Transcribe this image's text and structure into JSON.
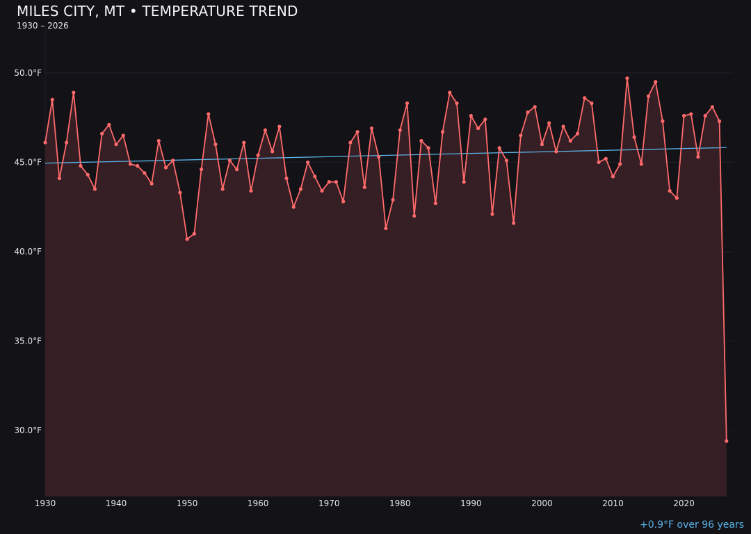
{
  "chart_data": {
    "type": "line",
    "title": "MILES CITY, MT • TEMPERATURE TREND",
    "subtitle": "1930 – 2026",
    "annotation": "+0.9°F over 96 years",
    "xlabel": "",
    "ylabel": "",
    "xlim": [
      1930,
      2027
    ],
    "ylim": [
      26.3,
      52.6
    ],
    "grid": true,
    "x_ticks": [
      "1930",
      "1940",
      "1950",
      "1960",
      "1970",
      "1980",
      "1990",
      "2000",
      "2010",
      "2020"
    ],
    "y_ticks": [
      "30.0°F",
      "35.0°F",
      "40.0°F",
      "45.0°F",
      "50.0°F"
    ],
    "y_tick_values": [
      30,
      35,
      40,
      45,
      50
    ],
    "x": [
      1930,
      1931,
      1932,
      1933,
      1934,
      1935,
      1936,
      1937,
      1938,
      1939,
      1940,
      1941,
      1942,
      1943,
      1944,
      1945,
      1946,
      1947,
      1948,
      1949,
      1950,
      1951,
      1952,
      1953,
      1954,
      1955,
      1956,
      1957,
      1958,
      1959,
      1960,
      1961,
      1962,
      1963,
      1964,
      1965,
      1966,
      1967,
      1968,
      1969,
      1970,
      1971,
      1972,
      1973,
      1974,
      1975,
      1976,
      1977,
      1978,
      1979,
      1980,
      1981,
      1982,
      1983,
      1984,
      1985,
      1986,
      1987,
      1988,
      1989,
      1990,
      1991,
      1992,
      1993,
      1994,
      1995,
      1996,
      1997,
      1998,
      1999,
      2000,
      2001,
      2002,
      2003,
      2004,
      2005,
      2006,
      2007,
      2008,
      2009,
      2010,
      2011,
      2012,
      2013,
      2014,
      2015,
      2016,
      2017,
      2018,
      2019,
      2020,
      2021,
      2022,
      2023,
      2024,
      2025,
      2026
    ],
    "series": [
      {
        "values": [
          46.1,
          48.5,
          44.1,
          46.1,
          48.9,
          44.8,
          44.3,
          43.5,
          46.6,
          47.1,
          46.0,
          46.5,
          44.9,
          44.8,
          44.4,
          43.8,
          46.2,
          44.7,
          45.1,
          43.3,
          40.7,
          41.0,
          44.6,
          47.7,
          46.0,
          43.5,
          45.1,
          44.6,
          46.1,
          43.4,
          45.4,
          46.8,
          45.6,
          47.0,
          44.1,
          42.5,
          43.5,
          45.0,
          44.2,
          43.4,
          43.9,
          43.9,
          42.8,
          46.1,
          46.7,
          43.6,
          46.9,
          45.3,
          41.3,
          42.9,
          46.8,
          48.3,
          42.0,
          46.2,
          45.8,
          42.7,
          46.7,
          48.9,
          48.3,
          43.9,
          47.6,
          46.9,
          47.4,
          42.1,
          45.8,
          45.1,
          41.6,
          46.5,
          47.8,
          48.1,
          46.0,
          47.2,
          45.6,
          47.0,
          46.2,
          46.6,
          48.6,
          48.3,
          45.0,
          45.2,
          44.2,
          44.9,
          49.7,
          46.4,
          44.9,
          48.7,
          49.5,
          47.3,
          43.4,
          43.0,
          47.6,
          47.7,
          45.3,
          47.6,
          48.1,
          47.3,
          29.4
        ],
        "color": "#ff6b6b"
      }
    ],
    "trend": {
      "start": [
        1930,
        44.95
      ],
      "end": [
        2026,
        45.82
      ],
      "color": "#5ab4e8"
    },
    "colors": {
      "background": "#131217",
      "fill": "#3a2026",
      "grid": "#22202a"
    }
  }
}
